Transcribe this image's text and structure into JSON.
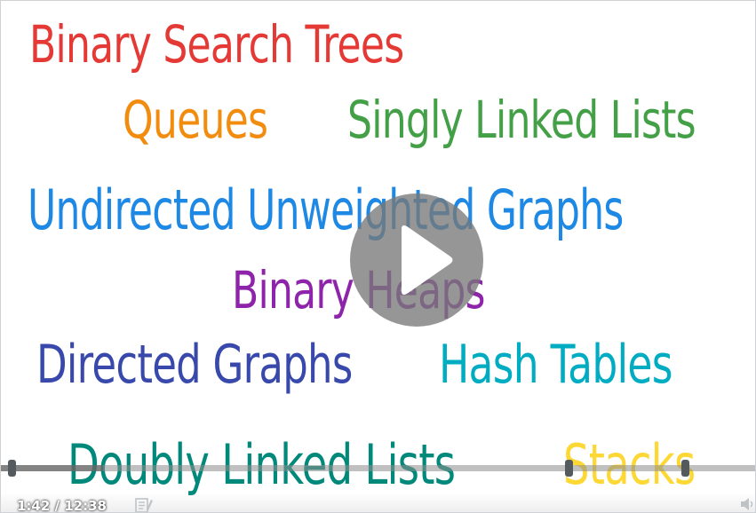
{
  "video": {
    "words": {
      "binary_search_trees": {
        "text": "Binary Search Trees",
        "color": "#e53935"
      },
      "queues": {
        "text": "Queues",
        "color": "#f28c0f"
      },
      "singly_linked_lists": {
        "text": "Singly Linked Lists",
        "color": "#43a047"
      },
      "undirected_unweighted_graphs": {
        "text": "Undirected Unweighted Graphs",
        "color": "#1e88e5"
      },
      "binary_heaps": {
        "text": "Binary Heaps",
        "color": "#8e24aa"
      },
      "directed_graphs": {
        "text": "Directed Graphs",
        "color": "#3949ab"
      },
      "hash_tables": {
        "text": "Hash Tables",
        "color": "#00acc1"
      },
      "doubly_linked_lists": {
        "text": "Doubly Linked Lists",
        "color": "#00897b"
      },
      "stacks": {
        "text": "Stacks",
        "color": "#fdd835"
      }
    },
    "play_icon": "play-icon"
  },
  "controls": {
    "current_time": "1:42",
    "duration": "12:38",
    "time_display": "1:42 / 12:38",
    "progress": 0.1346,
    "chapter_markers": [
      0.0,
      0.7365,
      0.8905
    ],
    "transcript_icon": "transcript-icon",
    "volume_icon": "volume-icon"
  }
}
